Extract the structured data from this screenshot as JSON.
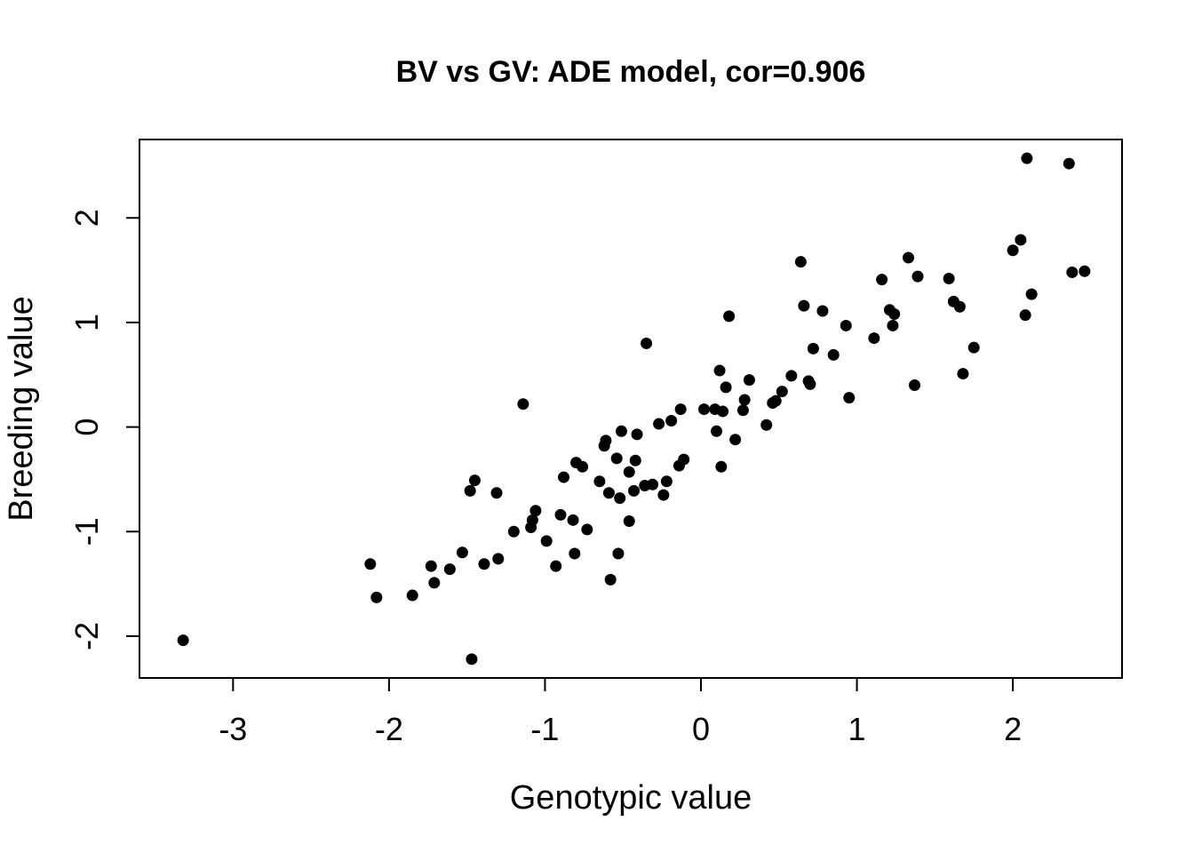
{
  "chart_data": {
    "type": "scatter",
    "title": "BV vs GV: ADE model, cor=0.906",
    "xlabel": "Genotypic value",
    "ylabel": "Breeding value",
    "xlim": [
      -3.6,
      2.7
    ],
    "ylim": [
      -2.4,
      2.75
    ],
    "xticks": [
      -3,
      -2,
      -1,
      0,
      1,
      2
    ],
    "yticks": [
      -2,
      -1,
      0,
      1,
      2
    ],
    "xtick_labels": [
      "-3",
      "-2",
      "-1",
      "0",
      "1",
      "2"
    ],
    "ytick_labels": [
      "-2",
      "-1",
      "0",
      "1",
      "2"
    ],
    "grid": false,
    "legend": "none",
    "point_color": "#000000",
    "points": [
      [
        -3.32,
        -2.04
      ],
      [
        -2.12,
        -1.31
      ],
      [
        -2.08,
        -1.63
      ],
      [
        -1.85,
        -1.61
      ],
      [
        -1.73,
        -1.33
      ],
      [
        -1.71,
        -1.49
      ],
      [
        -1.61,
        -1.36
      ],
      [
        -1.53,
        -1.2
      ],
      [
        -1.47,
        -2.22
      ],
      [
        -1.48,
        -0.61
      ],
      [
        -1.45,
        -0.51
      ],
      [
        -1.39,
        -1.31
      ],
      [
        -1.31,
        -0.63
      ],
      [
        -1.3,
        -1.26
      ],
      [
        -1.2,
        -1.0
      ],
      [
        -1.14,
        0.22
      ],
      [
        -1.09,
        -0.96
      ],
      [
        -1.08,
        -0.89
      ],
      [
        -1.06,
        -0.8
      ],
      [
        -0.99,
        -1.09
      ],
      [
        -0.93,
        -1.33
      ],
      [
        -0.9,
        -0.84
      ],
      [
        -0.88,
        -0.48
      ],
      [
        -0.82,
        -0.89
      ],
      [
        -0.81,
        -1.21
      ],
      [
        -0.8,
        -0.34
      ],
      [
        -0.76,
        -0.38
      ],
      [
        -0.73,
        -0.98
      ],
      [
        -0.65,
        -0.52
      ],
      [
        -0.62,
        -0.18
      ],
      [
        -0.61,
        -0.13
      ],
      [
        -0.59,
        -0.63
      ],
      [
        -0.58,
        -1.46
      ],
      [
        -0.54,
        -0.3
      ],
      [
        -0.53,
        -1.21
      ],
      [
        -0.52,
        -0.68
      ],
      [
        -0.51,
        -0.04
      ],
      [
        -0.46,
        -0.43
      ],
      [
        -0.46,
        -0.9
      ],
      [
        -0.43,
        -0.61
      ],
      [
        -0.42,
        -0.32
      ],
      [
        -0.41,
        -0.07
      ],
      [
        -0.36,
        -0.56
      ],
      [
        -0.35,
        0.8
      ],
      [
        -0.31,
        -0.55
      ],
      [
        -0.27,
        0.03
      ],
      [
        -0.24,
        -0.65
      ],
      [
        -0.22,
        -0.52
      ],
      [
        -0.19,
        0.06
      ],
      [
        -0.14,
        -0.37
      ],
      [
        -0.13,
        0.17
      ],
      [
        -0.11,
        -0.31
      ],
      [
        0.02,
        0.17
      ],
      [
        0.09,
        0.17
      ],
      [
        0.1,
        -0.04
      ],
      [
        0.12,
        0.54
      ],
      [
        0.13,
        -0.38
      ],
      [
        0.14,
        0.15
      ],
      [
        0.16,
        0.38
      ],
      [
        0.18,
        1.06
      ],
      [
        0.22,
        -0.12
      ],
      [
        0.27,
        0.16
      ],
      [
        0.28,
        0.26
      ],
      [
        0.31,
        0.45
      ],
      [
        0.42,
        0.02
      ],
      [
        0.46,
        0.23
      ],
      [
        0.48,
        0.25
      ],
      [
        0.52,
        0.34
      ],
      [
        0.58,
        0.49
      ],
      [
        0.64,
        1.58
      ],
      [
        0.66,
        1.16
      ],
      [
        0.69,
        0.44
      ],
      [
        0.7,
        0.41
      ],
      [
        0.72,
        0.75
      ],
      [
        0.78,
        1.11
      ],
      [
        0.85,
        0.69
      ],
      [
        0.93,
        0.97
      ],
      [
        0.95,
        0.28
      ],
      [
        1.11,
        0.85
      ],
      [
        1.16,
        1.41
      ],
      [
        1.21,
        1.12
      ],
      [
        1.23,
        0.97
      ],
      [
        1.24,
        1.08
      ],
      [
        1.33,
        1.62
      ],
      [
        1.37,
        0.4
      ],
      [
        1.39,
        1.44
      ],
      [
        1.59,
        1.42
      ],
      [
        1.62,
        1.2
      ],
      [
        1.66,
        1.15
      ],
      [
        1.68,
        0.51
      ],
      [
        1.75,
        0.76
      ],
      [
        2.0,
        1.69
      ],
      [
        2.05,
        1.79
      ],
      [
        2.08,
        1.07
      ],
      [
        2.09,
        2.57
      ],
      [
        2.12,
        1.27
      ],
      [
        2.36,
        2.52
      ],
      [
        2.38,
        1.48
      ],
      [
        2.46,
        1.49
      ]
    ]
  }
}
